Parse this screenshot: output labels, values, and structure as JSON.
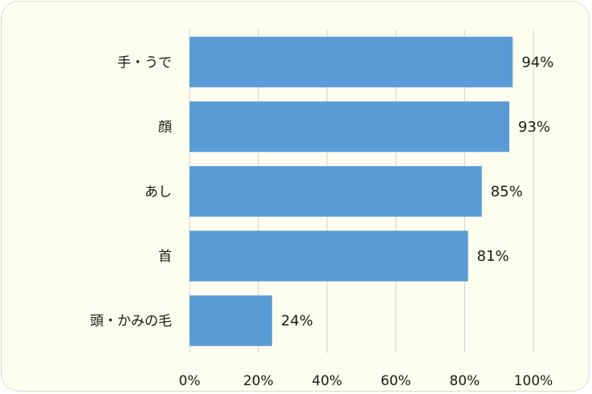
{
  "chart_data": {
    "type": "bar",
    "orientation": "horizontal",
    "categories": [
      "手・うで",
      "顔",
      "あし",
      "首",
      "頭・かみの毛"
    ],
    "values": [
      94,
      93,
      85,
      81,
      24
    ],
    "data_labels": [
      "94%",
      "93%",
      "85%",
      "81%",
      "24%"
    ],
    "xlim": [
      0,
      100
    ],
    "x_ticks": [
      0,
      20,
      40,
      60,
      80,
      100
    ],
    "x_tick_labels": [
      "0%",
      "20%",
      "40%",
      "60%",
      "80%",
      "100%"
    ],
    "grid": "vertical",
    "legend": "none",
    "colors": {
      "bar": "#5b9bd5",
      "grid": "#d0d0d0",
      "background": "#fefef0"
    }
  }
}
